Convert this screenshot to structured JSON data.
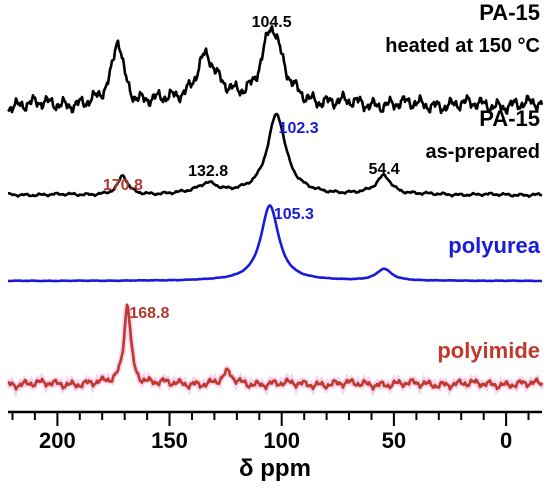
{
  "chart_data": {
    "type": "line",
    "xlabel": "δ ppm",
    "xlim": [
      222,
      -16
    ],
    "x_ticks": [
      200,
      150,
      100,
      50,
      0
    ],
    "x_tick_labels": [
      "200",
      "150",
      "100",
      "50",
      "0"
    ],
    "grid": false,
    "series": [
      {
        "name": "PA-15",
        "subtitle": "heated at 150 °C",
        "color": "#000000",
        "peaks": [
          {
            "ppm": 173,
            "height": 1.6,
            "width": 3.0
          },
          {
            "ppm": 134,
            "height": 1.2,
            "width": 5.5
          },
          {
            "ppm": 104.5,
            "height": 1.9,
            "width": 5.5
          }
        ],
        "annotations": [
          {
            "text": "104.5",
            "ppm": 104.5
          }
        ]
      },
      {
        "name": "PA-15",
        "subtitle": "as-prepared",
        "color": "#000000",
        "peaks": [
          {
            "ppm": 170.8,
            "height": 0.6,
            "width": 2.5
          },
          {
            "ppm": 132.8,
            "height": 0.35,
            "width": 5.5
          },
          {
            "ppm": 102.3,
            "height": 2.6,
            "width": 5.0
          },
          {
            "ppm": 54.4,
            "height": 0.6,
            "width": 4.0
          }
        ],
        "annotations": [
          {
            "text": "170.8",
            "ppm": 170.8,
            "color": "#b03a2e"
          },
          {
            "text": "132.8",
            "ppm": 132.8,
            "color": "#000000"
          },
          {
            "text": "102.3",
            "ppm": 102.3,
            "color": "#1a1adc"
          },
          {
            "text": "54.4",
            "ppm": 54.4,
            "color": "#000000"
          }
        ]
      },
      {
        "name": "polyurea",
        "color": "#1a1adc",
        "peaks": [
          {
            "ppm": 105.3,
            "height": 2.6,
            "width": 4.8
          },
          {
            "ppm": 54.4,
            "height": 0.4,
            "width": 4.0
          }
        ],
        "annotations": [
          {
            "text": "105.3",
            "ppm": 105.3,
            "color": "#1a1adc"
          }
        ]
      },
      {
        "name": "polyimide",
        "color": "#c0392b",
        "peaks": [
          {
            "ppm": 168.8,
            "height": 3.0,
            "width": 1.8
          },
          {
            "ppm": 124,
            "height": 0.4,
            "width": 2.5
          }
        ],
        "annotations": [
          {
            "text": "168.8",
            "ppm": 168.8,
            "color": "#b03a2e"
          }
        ]
      }
    ]
  }
}
